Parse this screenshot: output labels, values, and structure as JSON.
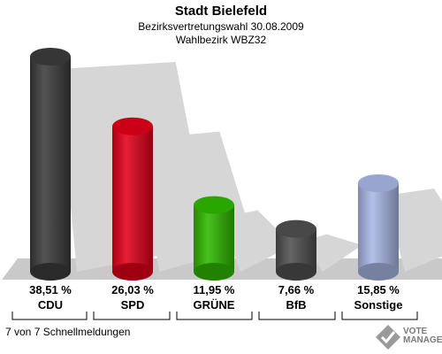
{
  "header": {
    "title": "Stadt Bielefeld",
    "subtitle1": "Bezirksvertretungswahl 30.08.2009",
    "subtitle2": "Wahlbezirk WBZ32"
  },
  "chart_data": {
    "type": "bar",
    "categories": [
      "CDU",
      "SPD",
      "GRÜNE",
      "BfB",
      "Sonstige"
    ],
    "values": [
      38.51,
      26.03,
      11.95,
      7.66,
      15.85
    ],
    "value_labels": [
      "38,51 %",
      "26,03 %",
      "11,95 %",
      "7,66 %",
      "15,85 %"
    ],
    "colors": [
      "#3c3c3c",
      "#e2001a",
      "#2fb800",
      "#505050",
      "#a9b8e6"
    ],
    "ylim": [
      0,
      40
    ],
    "grid": false,
    "legend": "none"
  },
  "footer": {
    "note": "7 von 7 Schnellmeldungen",
    "brand_line1": "VOTE",
    "brand_line2": "MANAGER"
  }
}
